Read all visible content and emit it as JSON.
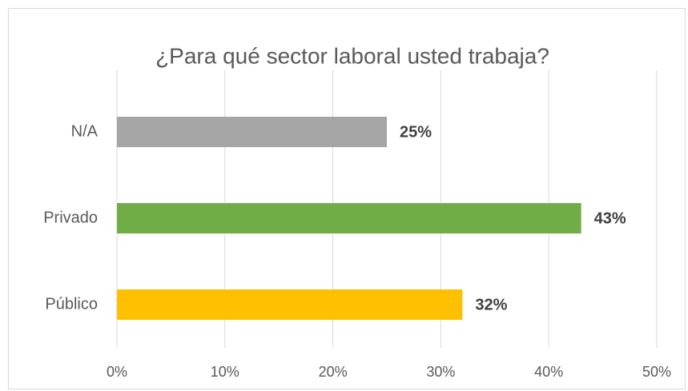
{
  "chart_data": {
    "type": "hbar",
    "title": "¿Para qué sector laboral usted trabaja?",
    "categories": [
      "N/A",
      "Privado",
      "Público"
    ],
    "values": [
      25,
      43,
      32
    ],
    "value_labels": [
      "25%",
      "43%",
      "32%"
    ],
    "colors": [
      "#a5a5a5",
      "#70ad47",
      "#ffc000"
    ],
    "xlim": [
      0,
      50
    ],
    "xticks": [
      {
        "value": 0,
        "label": "0%"
      },
      {
        "value": 10,
        "label": "10%"
      },
      {
        "value": 20,
        "label": "20%"
      },
      {
        "value": 30,
        "label": "30%"
      },
      {
        "value": 40,
        "label": "40%"
      },
      {
        "value": 50,
        "label": "50%"
      }
    ],
    "grid": true
  }
}
